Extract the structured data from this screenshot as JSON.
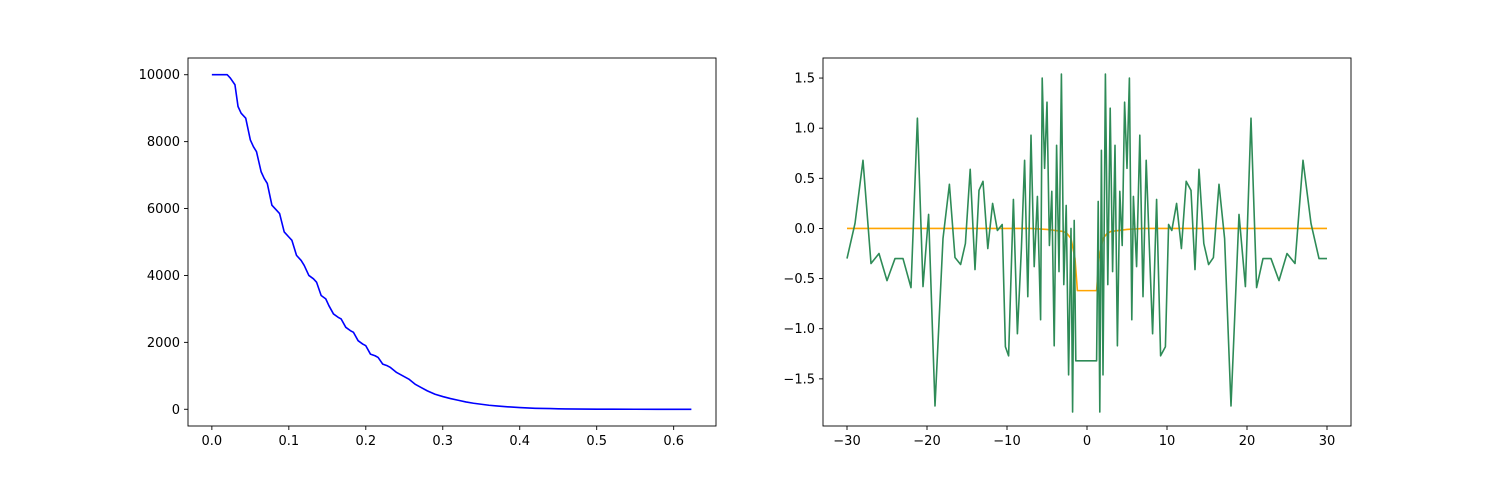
{
  "chart_data": [
    {
      "type": "line",
      "title": "",
      "xlabel": "",
      "ylabel": "",
      "xlim": [
        -0.031,
        0.655
      ],
      "ylim": [
        -500,
        10500
      ],
      "xticks": [
        0.0,
        0.1,
        0.2,
        0.3,
        0.4,
        0.5,
        0.6
      ],
      "xtick_labels": [
        "0.0",
        "0.1",
        "0.2",
        "0.3",
        "0.4",
        "0.5",
        "0.6"
      ],
      "yticks": [
        0,
        2000,
        4000,
        6000,
        8000,
        10000
      ],
      "ytick_labels": [
        "0",
        "2000",
        "4000",
        "6000",
        "8000",
        "10000"
      ],
      "grid": false,
      "series": [
        {
          "color": "#0000ff",
          "x": [
            0.0,
            0.008,
            0.016,
            0.02,
            0.024,
            0.03,
            0.034,
            0.038,
            0.044,
            0.05,
            0.054,
            0.058,
            0.064,
            0.068,
            0.072,
            0.078,
            0.084,
            0.088,
            0.094,
            0.1,
            0.104,
            0.11,
            0.116,
            0.12,
            0.126,
            0.132,
            0.136,
            0.142,
            0.148,
            0.152,
            0.158,
            0.164,
            0.168,
            0.174,
            0.18,
            0.184,
            0.19,
            0.196,
            0.2,
            0.206,
            0.212,
            0.216,
            0.222,
            0.228,
            0.232,
            0.24,
            0.248,
            0.256,
            0.264,
            0.272,
            0.28,
            0.29,
            0.3,
            0.31,
            0.32,
            0.33,
            0.34,
            0.35,
            0.36,
            0.37,
            0.38,
            0.39,
            0.4,
            0.41,
            0.42,
            0.43,
            0.44,
            0.45,
            0.46,
            0.48,
            0.5,
            0.52,
            0.55,
            0.58,
            0.623
          ],
          "y": [
            10000,
            10000,
            10000,
            10000,
            9900,
            9700,
            9050,
            8850,
            8700,
            8050,
            7850,
            7700,
            7100,
            6900,
            6750,
            6100,
            5950,
            5850,
            5300,
            5150,
            5050,
            4600,
            4450,
            4300,
            4000,
            3900,
            3800,
            3400,
            3300,
            3100,
            2850,
            2750,
            2700,
            2450,
            2350,
            2300,
            2050,
            1950,
            1900,
            1650,
            1600,
            1550,
            1350,
            1300,
            1250,
            1100,
            1000,
            900,
            750,
            650,
            550,
            450,
            380,
            320,
            270,
            220,
            180,
            150,
            120,
            100,
            80,
            65,
            50,
            40,
            30,
            25,
            20,
            15,
            10,
            6,
            4,
            2,
            1,
            0,
            0
          ]
        }
      ]
    },
    {
      "type": "line",
      "title": "",
      "xlabel": "",
      "ylabel": "",
      "xlim": [
        -33,
        33
      ],
      "ylim": [
        -1.97,
        1.7
      ],
      "xticks": [
        -30,
        -20,
        -10,
        0,
        10,
        20,
        30
      ],
      "xtick_labels": [
        "−30",
        "−20",
        "−10",
        "0",
        "10",
        "20",
        "30"
      ],
      "yticks": [
        -1.5,
        -1.0,
        -0.5,
        0.0,
        0.5,
        1.0,
        1.5
      ],
      "ytick_labels": [
        "−1.5",
        "−1.0",
        "−0.5",
        "0.0",
        "0.5",
        "1.0",
        "1.5"
      ],
      "grid": false,
      "series": [
        {
          "color": "#ffa500",
          "x": [
            -30,
            -20,
            -10,
            -7,
            -5,
            -4,
            -3,
            -2.5,
            -2,
            -1.5,
            -1.2,
            1.2,
            1.5,
            2,
            2.5,
            3,
            4,
            5,
            7,
            10,
            20,
            30
          ],
          "y": [
            0.0,
            0.0,
            0.0,
            0.0,
            -0.01,
            -0.02,
            -0.03,
            -0.05,
            -0.1,
            -0.3,
            -0.62,
            -0.62,
            -0.3,
            -0.1,
            -0.05,
            -0.03,
            -0.02,
            -0.01,
            0.0,
            0.0,
            0.0,
            0.0
          ]
        },
        {
          "color": "#2e8b57",
          "x": [
            -30,
            -29,
            -28,
            -27,
            -26,
            -25,
            -24,
            -23,
            -22,
            -21.2,
            -20.5,
            -19.8,
            -19,
            -18,
            -17.2,
            -16.5,
            -15.8,
            -15.2,
            -14.6,
            -14,
            -13.5,
            -13,
            -12.4,
            -11.8,
            -11.2,
            -10.6,
            -10.2,
            -9.8,
            -9.2,
            -8.7,
            -8.2,
            -7.8,
            -7.4,
            -7,
            -6.6,
            -6.2,
            -5.8,
            -5.6,
            -5.3,
            -5,
            -4.7,
            -4.4,
            -4.1,
            -3.8,
            -3.5,
            -3.2,
            -2.9,
            -2.6,
            -2.3,
            -2,
            -1.8,
            -1.6,
            -1.4,
            -1.2,
            0.0,
            1.2,
            1.4,
            1.6,
            1.8,
            2,
            2.3,
            2.6,
            2.9,
            3.2,
            3.5,
            3.8,
            4.1,
            4.4,
            4.7,
            5,
            5.3,
            5.6,
            5.8,
            6.2,
            6.6,
            7,
            7.4,
            7.8,
            8.2,
            8.7,
            9.2,
            9.8,
            10.2,
            10.6,
            11.2,
            11.8,
            12.4,
            13,
            13.5,
            14,
            14.6,
            15.2,
            15.8,
            16.5,
            17.2,
            18,
            19,
            19.8,
            20.5,
            21.2,
            22,
            23,
            24,
            25,
            26,
            27,
            28,
            29,
            30
          ],
          "y": [
            -0.3,
            0.05,
            0.68,
            -0.35,
            -0.25,
            -0.52,
            -0.3,
            -0.3,
            -0.59,
            1.1,
            -0.58,
            0.14,
            -1.77,
            -0.1,
            0.44,
            -0.29,
            -0.36,
            -0.15,
            0.59,
            -0.41,
            0.38,
            0.47,
            -0.2,
            0.25,
            -0.02,
            0.04,
            -1.18,
            -1.27,
            0.29,
            -1.05,
            -0.2,
            0.68,
            -0.68,
            0.93,
            -0.38,
            0.32,
            -0.91,
            1.5,
            0.6,
            1.26,
            -0.17,
            0.37,
            -1.17,
            0.83,
            -0.43,
            1.54,
            -0.56,
            0.23,
            -1.46,
            0.0,
            -1.83,
            0.08,
            -1.32,
            -1.32,
            -1.32,
            -1.32,
            0.27,
            -1.83,
            0.78,
            -1.46,
            1.54,
            -0.56,
            1.2,
            -0.43,
            0.83,
            -1.17,
            0.37,
            -0.17,
            1.26,
            0.6,
            1.5,
            -0.91,
            0.32,
            -0.38,
            0.93,
            -0.68,
            0.68,
            -0.2,
            -1.05,
            0.29,
            -1.27,
            -1.18,
            0.04,
            -0.02,
            0.25,
            -0.2,
            0.47,
            0.38,
            -0.41,
            0.59,
            -0.15,
            -0.36,
            -0.29,
            0.44,
            -0.1,
            -1.77,
            0.14,
            -0.58,
            1.1,
            -0.59,
            -0.3,
            -0.3,
            -0.52,
            -0.25,
            -0.35,
            0.68,
            0.05,
            -0.3,
            -0.3
          ]
        }
      ]
    }
  ]
}
